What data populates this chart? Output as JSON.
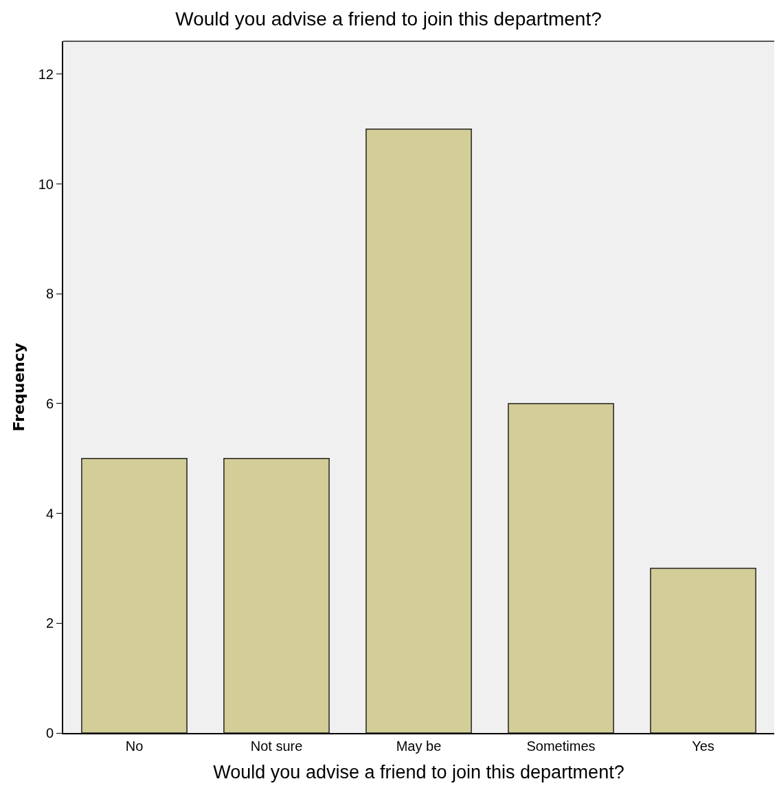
{
  "chart_data": {
    "type": "bar",
    "title": "Would you advise a friend to join this department?",
    "xlabel": "Would you advise a friend to join this department?",
    "ylabel": "Frequency",
    "categories": [
      "No",
      "Not sure",
      "May be",
      "Sometimes",
      "Yes"
    ],
    "values": [
      5,
      5,
      11,
      6,
      3
    ],
    "color": "#d3cd97",
    "ylim": [
      0,
      12.6
    ],
    "yticks": [
      0,
      2,
      4,
      6,
      8,
      10,
      12
    ],
    "grid": false,
    "legend": false
  }
}
